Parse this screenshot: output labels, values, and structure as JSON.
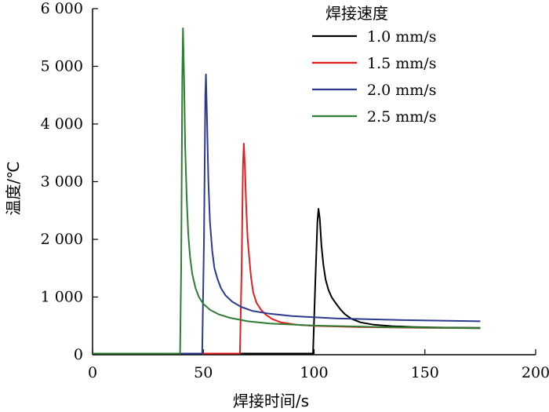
{
  "chart_data": {
    "type": "line",
    "title": "",
    "xlabel": "焊接时间/s",
    "ylabel": "温度/℃",
    "xlim": [
      0,
      200
    ],
    "ylim": [
      0,
      6000
    ],
    "x_ticks": [
      0,
      50,
      100,
      150,
      200
    ],
    "x_tick_labels": [
      "0",
      "50",
      "100",
      "150",
      "200"
    ],
    "y_ticks": [
      0,
      1000,
      2000,
      3000,
      4000,
      5000,
      6000
    ],
    "y_tick_labels": [
      "0",
      "1 000",
      "2 000",
      "3 000",
      "4 000",
      "5 000",
      "6 000"
    ],
    "grid": false,
    "legend": {
      "title": "焊接速度",
      "placement": "top-right"
    },
    "series": [
      {
        "name": "1.0 mm/s",
        "color": "#000000",
        "x": [
          0,
          99.5,
          100.5,
          101.5,
          102.0,
          102.6,
          103.3,
          104.2,
          105.2,
          106.5,
          108.0,
          110.0,
          112.0,
          114.0,
          117.0,
          121.0,
          127.0,
          135.0,
          145.0,
          160.0,
          175.0
        ],
        "y": [
          20,
          20,
          1200,
          2300,
          2530,
          2350,
          1900,
          1550,
          1300,
          1120,
          990,
          880,
          780,
          700,
          620,
          560,
          520,
          495,
          480,
          470,
          465
        ]
      },
      {
        "name": "1.5 mm/s",
        "color": "#e02020",
        "x": [
          0,
          66.5,
          67.3,
          67.9,
          68.3,
          68.8,
          69.4,
          70.0,
          70.8,
          71.5,
          72.5,
          74.0,
          76.0,
          78.0,
          81.0,
          85.0,
          92.0,
          100.0,
          120.0,
          150.0,
          175.0
        ],
        "y": [
          20,
          20,
          1500,
          3300,
          3660,
          3200,
          2500,
          2000,
          1650,
          1350,
          1080,
          900,
          780,
          700,
          620,
          560,
          520,
          500,
          480,
          465,
          460
        ]
      },
      {
        "name": "2.0 mm/s",
        "color": "#2b3990",
        "x": [
          0,
          49.5,
          50.3,
          50.9,
          51.2,
          51.7,
          52.3,
          53.0,
          54.0,
          55.0,
          56.5,
          58.0,
          60.0,
          63.0,
          67.0,
          72.0,
          80.0,
          90.0,
          110.0,
          140.0,
          175.0
        ],
        "y": [
          20,
          20,
          2000,
          4500,
          4860,
          4000,
          3000,
          2300,
          1800,
          1500,
          1300,
          1150,
          1030,
          920,
          830,
          760,
          710,
          670,
          630,
          600,
          580
        ]
      },
      {
        "name": "2.5 mm/s",
        "color": "#2e7d32",
        "x": [
          0,
          39.5,
          40.0,
          40.5,
          40.8,
          41.3,
          41.8,
          42.5,
          43.2,
          44.0,
          45.0,
          46.5,
          48.0,
          50.0,
          53.0,
          57.0,
          62.0,
          70.0,
          80.0,
          100.0,
          130.0,
          175.0
        ],
        "y": [
          20,
          20,
          1500,
          4800,
          5660,
          4800,
          3600,
          2700,
          2100,
          1700,
          1400,
          1150,
          1000,
          880,
          780,
          700,
          640,
          580,
          540,
          505,
          480,
          460
        ]
      }
    ]
  }
}
